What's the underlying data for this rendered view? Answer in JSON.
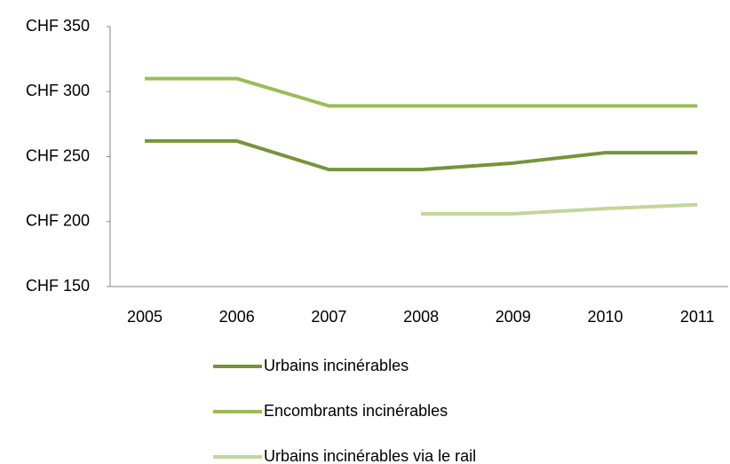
{
  "chart_data": {
    "type": "line",
    "categories": [
      "2005",
      "2006",
      "2007",
      "2008",
      "2009",
      "2010",
      "2011"
    ],
    "series": [
      {
        "name": "Urbains incinérables",
        "color": "#77933c",
        "values": [
          262,
          262,
          240,
          240,
          245,
          253,
          253
        ]
      },
      {
        "name": "Encombrants incinérables",
        "color": "#9bbb59",
        "values": [
          310,
          310,
          289,
          289,
          289,
          289,
          289
        ]
      },
      {
        "name": "Urbains incinérables via le rail",
        "color": "#c3d69b",
        "values": [
          null,
          null,
          null,
          206,
          206,
          210,
          213
        ]
      }
    ],
    "ylim": [
      150,
      350
    ],
    "yticks": [
      {
        "value": 150,
        "label": "CHF 150"
      },
      {
        "value": 200,
        "label": "CHF 200"
      },
      {
        "value": 250,
        "label": "CHF 250"
      },
      {
        "value": 300,
        "label": "CHF 300"
      },
      {
        "value": 350,
        "label": "CHF 350"
      }
    ],
    "grid": false,
    "legend": "bottom"
  }
}
